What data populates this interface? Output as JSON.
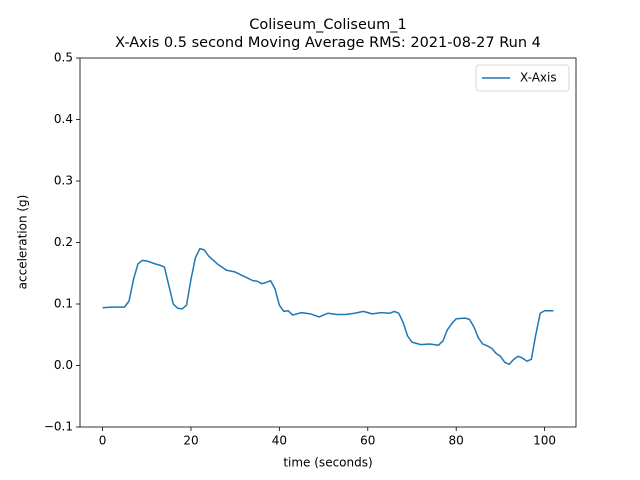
{
  "chart_data": {
    "type": "line",
    "title": "Coliseum_Coliseum_1",
    "subtitle": "X-Axis 0.5 second Moving Average RMS: 2021-08-27 Run 4",
    "x_label": "time (seconds)",
    "y_label": "acceleration (g)",
    "x": [
      0,
      2,
      5,
      6,
      7,
      8,
      9,
      10,
      12,
      13,
      14,
      15,
      16,
      17,
      18,
      19,
      20,
      21,
      22,
      23,
      24,
      26,
      28,
      30,
      32,
      34,
      35,
      36,
      37,
      38,
      39,
      40,
      41,
      42,
      43,
      45,
      47,
      49,
      51,
      53,
      55,
      57,
      59,
      61,
      63,
      65,
      66,
      67,
      68,
      69,
      70,
      72,
      74,
      76,
      77,
      78,
      79,
      80,
      82,
      83,
      84,
      85,
      86,
      87,
      88,
      89,
      90,
      91,
      92,
      93,
      94,
      95,
      96,
      97,
      98,
      99,
      100,
      102
    ],
    "series": [
      {
        "name": "X-Axis",
        "color": "#1f77b4",
        "values": [
          0.094,
          0.095,
          0.095,
          0.105,
          0.14,
          0.165,
          0.171,
          0.17,
          0.165,
          0.163,
          0.16,
          0.13,
          0.1,
          0.093,
          0.092,
          0.098,
          0.14,
          0.175,
          0.19,
          0.188,
          0.178,
          0.165,
          0.155,
          0.152,
          0.145,
          0.138,
          0.137,
          0.133,
          0.135,
          0.138,
          0.125,
          0.098,
          0.088,
          0.089,
          0.082,
          0.086,
          0.084,
          0.079,
          0.085,
          0.083,
          0.083,
          0.085,
          0.088,
          0.084,
          0.086,
          0.085,
          0.088,
          0.085,
          0.07,
          0.048,
          0.038,
          0.034,
          0.035,
          0.033,
          0.04,
          0.058,
          0.068,
          0.076,
          0.077,
          0.075,
          0.063,
          0.045,
          0.035,
          0.032,
          0.028,
          0.02,
          0.015,
          0.005,
          0.002,
          0.01,
          0.015,
          0.012,
          0.007,
          0.01,
          0.05,
          0.085,
          0.089,
          0.089
        ]
      }
    ],
    "xlim": [
      -5.1,
      107.1
    ],
    "ylim": [
      -0.1,
      0.5
    ],
    "xticks": [
      0,
      20,
      40,
      60,
      80,
      100
    ],
    "yticks": [
      {
        "value": -0.1,
        "label": "−0.1"
      },
      {
        "value": 0,
        "label": "0.0"
      },
      0.1,
      0.2,
      0.3,
      0.4,
      0.5
    ],
    "legend": "upper right"
  }
}
